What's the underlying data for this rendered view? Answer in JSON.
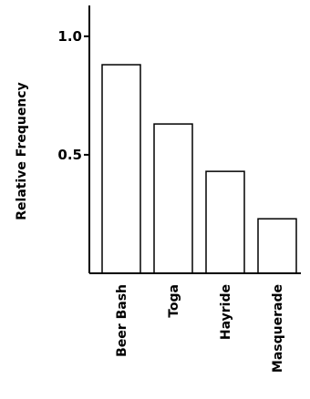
{
  "chart_data": {
    "type": "bar",
    "categories": [
      "Beer Bash",
      "Toga",
      "Hayride",
      "Masquerade"
    ],
    "values": [
      0.88,
      0.63,
      0.43,
      0.23
    ],
    "title": "",
    "xlabel": "",
    "ylabel": "Relative Frequency",
    "ylim": [
      0,
      1.13
    ],
    "yticks": [
      0.5,
      1.0
    ],
    "ytick_labels": [
      "0.5",
      "1.0"
    ],
    "grid": false,
    "colors": {
      "bar_fill": "#ffffff",
      "bar_stroke": "#000000",
      "axis": "#000000"
    }
  }
}
